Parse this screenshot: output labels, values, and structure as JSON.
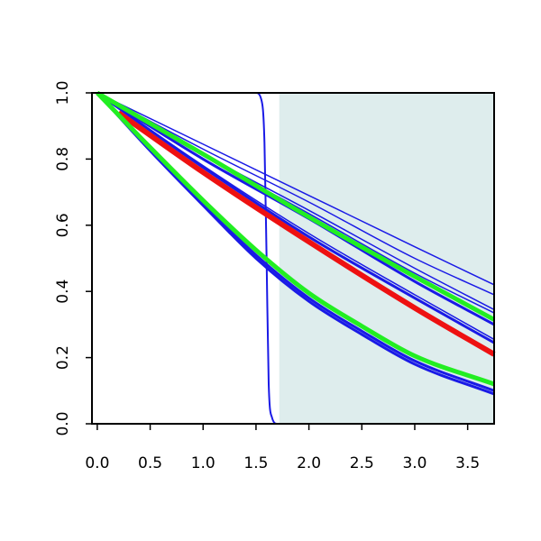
{
  "chart_data": {
    "type": "line",
    "title": "",
    "xlabel": "",
    "ylabel": "",
    "xlim": [
      -0.05,
      3.75
    ],
    "ylim": [
      0.0,
      1.0
    ],
    "xticks": [
      "0.0",
      "0.5",
      "1.0",
      "1.5",
      "2.0",
      "2.5",
      "3.0",
      "3.5"
    ],
    "yticks": [
      "0.0",
      "0.2",
      "0.4",
      "0.6",
      "0.8",
      "1.0"
    ],
    "grid": false,
    "legend": "none",
    "shaded_region": {
      "x_start": 1.72,
      "x_end": 3.75,
      "color": "#deeded"
    },
    "series": [
      {
        "color": "#1a1ae6",
        "width": 2,
        "x": [
          0,
          1.5,
          1.55,
          1.58,
          1.6,
          1.62,
          1.65,
          1.7,
          3.75
        ],
        "y": [
          1.0,
          1.0,
          0.98,
          0.85,
          0.5,
          0.12,
          0.02,
          0.0,
          0.0
        ]
      },
      {
        "color": "#1a1ae6",
        "width": 1.5,
        "x": [
          0,
          1.0,
          2.0,
          3.0,
          3.75
        ],
        "y": [
          1.0,
          0.845,
          0.69,
          0.535,
          0.42
        ]
      },
      {
        "color": "#1a1ae6",
        "width": 1.5,
        "x": [
          0,
          1.0,
          2.0,
          3.0,
          3.75
        ],
        "y": [
          1.0,
          0.83,
          0.67,
          0.5,
          0.39
        ]
      },
      {
        "color": "#1a1ae6",
        "width": 1.5,
        "x": [
          0,
          1.0,
          2.0,
          3.0,
          3.75
        ],
        "y": [
          1.0,
          0.815,
          0.645,
          0.47,
          0.345
        ]
      },
      {
        "color": "#1a1ae6",
        "width": 1.5,
        "x": [
          0,
          1.0,
          2.0,
          3.0,
          3.75
        ],
        "y": [
          1.0,
          0.81,
          0.635,
          0.455,
          0.335
        ]
      },
      {
        "color": "#1a1ae6",
        "width": 3,
        "x": [
          0,
          1.0,
          2.0,
          3.0,
          3.75
        ],
        "y": [
          1.0,
          0.8,
          0.62,
          0.43,
          0.3
        ]
      },
      {
        "color": "#1a1ae6",
        "width": 1.5,
        "x": [
          0,
          1.0,
          2.0,
          3.0,
          3.75
        ],
        "y": [
          1.0,
          0.78,
          0.575,
          0.39,
          0.255
        ]
      },
      {
        "color": "#1a1ae6",
        "width": 3,
        "x": [
          0,
          1.0,
          2.0,
          3.0,
          3.75
        ],
        "y": [
          1.0,
          0.775,
          0.565,
          0.38,
          0.245
        ]
      },
      {
        "color": "#1a1ae6",
        "width": 3,
        "x": [
          0,
          0.5,
          1.0,
          1.5,
          2.0,
          2.5,
          3.0,
          3.75
        ],
        "y": [
          1.0,
          0.83,
          0.665,
          0.51,
          0.38,
          0.28,
          0.19,
          0.1
        ]
      },
      {
        "color": "#1a1ae6",
        "width": 3,
        "x": [
          0,
          0.5,
          1.0,
          1.5,
          2.0,
          2.5,
          3.0,
          3.75
        ],
        "y": [
          1.0,
          0.825,
          0.66,
          0.5,
          0.37,
          0.27,
          0.18,
          0.09
        ]
      },
      {
        "color": "#22ee22",
        "width": 5,
        "x": [
          0,
          1.0,
          2.0,
          3.0,
          3.75
        ],
        "y": [
          1.0,
          0.815,
          0.625,
          0.445,
          0.315
        ]
      },
      {
        "color": "#ee1111",
        "width": 6,
        "x": [
          0.2,
          1.0,
          2.0,
          3.0,
          3.75
        ],
        "y": [
          0.94,
          0.76,
          0.55,
          0.35,
          0.21
        ]
      },
      {
        "color": "#22ee22",
        "width": 5,
        "x": [
          0,
          0.5,
          1.0,
          1.5,
          2.0,
          2.5,
          3.0,
          3.75
        ],
        "y": [
          1.0,
          0.835,
          0.675,
          0.525,
          0.395,
          0.295,
          0.205,
          0.12
        ]
      }
    ]
  }
}
